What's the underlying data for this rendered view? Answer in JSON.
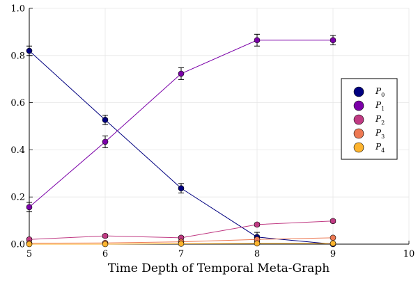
{
  "chart_data": {
    "type": "line",
    "title": "",
    "xlabel": "Time Depth of Temporal Meta-Graph",
    "ylabel": "",
    "xlim": [
      5,
      10
    ],
    "ylim": [
      0.0,
      1.0
    ],
    "xticks": [
      "5",
      "6",
      "7",
      "8",
      "9",
      "10"
    ],
    "yticks": [
      "0.0",
      "0.2",
      "0.4",
      "0.6",
      "0.8",
      "1.0"
    ],
    "grid": true,
    "legend_position": "right",
    "x": [
      5,
      6,
      7,
      8,
      9
    ],
    "series": [
      {
        "name": "P",
        "sub": "0",
        "color": "#000080",
        "values": [
          0.82,
          0.527,
          0.237,
          0.03,
          0.0
        ],
        "errors": [
          0.02,
          0.02,
          0.02,
          0.02,
          0.0
        ]
      },
      {
        "name": "P",
        "sub": "1",
        "color": "#7b00a8",
        "values": [
          0.157,
          0.434,
          0.723,
          0.865,
          0.865
        ],
        "errors": [
          0.02,
          0.025,
          0.025,
          0.025,
          0.02
        ]
      },
      {
        "name": "P",
        "sub": "2",
        "color": "#c03a83",
        "values": [
          0.02,
          0.035,
          0.027,
          0.083,
          0.098
        ],
        "errors": [
          0.005,
          0.006,
          0.006,
          0.006,
          0.005
        ]
      },
      {
        "name": "P",
        "sub": "3",
        "color": "#ed7953",
        "values": [
          0.004,
          0.005,
          0.01,
          0.02,
          0.027
        ],
        "errors": [
          0.002,
          0.002,
          0.003,
          0.005,
          0.004
        ]
      },
      {
        "name": "P",
        "sub": "4",
        "color": "#fdb42f",
        "values": [
          0.0,
          0.0,
          0.002,
          0.003,
          0.003
        ],
        "errors": [
          0.001,
          0.001,
          0.001,
          0.001,
          0.001
        ]
      }
    ]
  }
}
